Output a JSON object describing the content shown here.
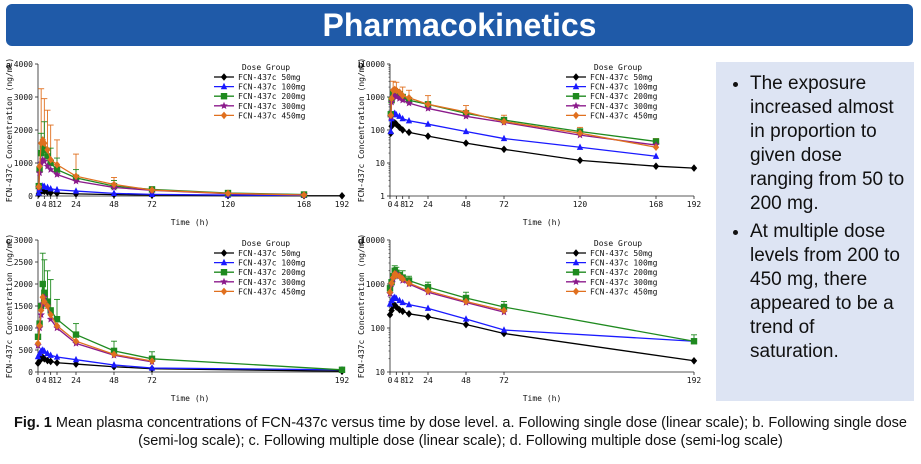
{
  "header": {
    "title": "Pharmacokinetics"
  },
  "bullets": [
    "The exposure increased almost in proportion to given dose ranging from 50 to 200 mg.",
    "At multiple dose levels from 200 to 450 mg, there appeared to be a trend of saturation."
  ],
  "caption": {
    "fig": "Fig. 1",
    "text": " Mean plasma concentrations of FCN-437c versus time by dose level. a. Following single dose (linear scale); b. Following single dose (semi-log scale); c. Following multiple dose (linear scale); d. Following multiple dose (semi-log scale)"
  },
  "colors": {
    "50mg": "#000000",
    "100mg": "#1a1aff",
    "200mg": "#1f8a1f",
    "300mg": "#8b1a8b",
    "450mg": "#e0701f",
    "banner": "#1f5aa8",
    "bullets_bg": "#dde4f3"
  },
  "chart_data": [
    {
      "id": "a",
      "type": "line",
      "scale": "linear",
      "xlabel": "Time (h)",
      "ylabel": "FCN-437c Concentration (ng/mL)",
      "xlim": [
        0,
        192
      ],
      "ylim": [
        0,
        4000
      ],
      "xticks": [
        0,
        4,
        8,
        12,
        24,
        48,
        72,
        120,
        168,
        192
      ],
      "xtick_labels": [
        "0",
        "4",
        "8",
        "12",
        "24",
        "48",
        "72",
        "120",
        "168",
        "192"
      ],
      "yticks": [
        0,
        1000,
        2000,
        3000,
        4000
      ],
      "ytick_labels": [
        "0",
        "1000",
        "2000",
        "3000",
        "4000"
      ],
      "legend_title": "Dose Group",
      "legend_position": "top-right",
      "series": [
        {
          "name": "FCN-437c 50mg",
          "marker": "diamond",
          "x": [
            0.5,
            1,
            2,
            3,
            4,
            6,
            8,
            12,
            24,
            48,
            72,
            120,
            168,
            192
          ],
          "values": [
            60,
            110,
            150,
            160,
            140,
            120,
            100,
            85,
            65,
            42,
            28,
            13,
            8,
            7
          ]
        },
        {
          "name": "FCN-437c 100mg",
          "marker": "triangle",
          "x": [
            0.5,
            1,
            2,
            3,
            4,
            6,
            8,
            12,
            24,
            48,
            72,
            120,
            168
          ],
          "values": [
            90,
            200,
            280,
            300,
            290,
            260,
            220,
            190,
            150,
            80,
            50,
            28,
            18
          ]
        },
        {
          "name": "FCN-437c 200mg",
          "marker": "square",
          "x": [
            0.5,
            1,
            2,
            3,
            4,
            6,
            8,
            12,
            24,
            48,
            72,
            120,
            168
          ],
          "values": [
            300,
            800,
            1300,
            1500,
            1400,
            1200,
            1000,
            800,
            550,
            300,
            200,
            90,
            45
          ]
        },
        {
          "name": "FCN-437c 300mg",
          "marker": "star",
          "x": [
            0.5,
            1,
            2,
            3,
            4,
            6,
            8,
            12,
            24,
            48,
            72,
            120,
            168
          ],
          "values": [
            250,
            700,
            1000,
            1100,
            1050,
            900,
            800,
            650,
            450,
            260,
            170,
            70,
            35
          ]
        },
        {
          "name": "FCN-437c 450mg",
          "marker": "diamond",
          "x": [
            0.5,
            1,
            2,
            3,
            4,
            6,
            8,
            12,
            24,
            48,
            72,
            120,
            168
          ],
          "values": [
            280,
            900,
            1600,
            1700,
            1600,
            1400,
            1100,
            950,
            600,
            350,
            180,
            80,
            30
          ]
        }
      ],
      "error_bars": [
        {
          "series": "FCN-437c 450mg",
          "x": [
            2,
            4,
            6,
            8,
            12,
            24,
            48,
            72
          ],
          "upper": [
            3250,
            2950,
            2600,
            2150,
            1700,
            1270,
            560,
            280
          ]
        },
        {
          "series": "FCN-437c 200mg",
          "x": [
            2,
            4,
            8,
            12,
            24,
            48,
            72
          ],
          "upper": [
            1900,
            2250,
            1450,
            1150,
            800,
            470,
            260
          ]
        }
      ]
    },
    {
      "id": "b",
      "type": "line",
      "scale": "log",
      "xlabel": "Time (h)",
      "ylabel": "FCN-437c Concentration (ng/mL)",
      "xlim": [
        0,
        192
      ],
      "ylim": [
        1,
        10000
      ],
      "xticks": [
        0,
        4,
        8,
        12,
        24,
        48,
        72,
        120,
        168,
        192
      ],
      "xtick_labels": [
        "0",
        "4",
        "8",
        "12",
        "24",
        "48",
        "72",
        "120",
        "168",
        "192"
      ],
      "yticks": [
        1,
        10,
        100,
        1000,
        10000
      ],
      "ytick_labels": [
        "1",
        "10",
        "100",
        "1000",
        "10000"
      ],
      "legend_title": "Dose Group",
      "legend_position": "top-right",
      "series": [
        {
          "name": "FCN-437c 50mg",
          "marker": "diamond",
          "x": [
            0.5,
            1,
            2,
            3,
            4,
            6,
            8,
            12,
            24,
            48,
            72,
            120,
            168,
            192
          ],
          "values": [
            80,
            130,
            160,
            165,
            150,
            120,
            100,
            85,
            65,
            40,
            26,
            12,
            8,
            7
          ]
        },
        {
          "name": "FCN-437c 100mg",
          "marker": "triangle",
          "x": [
            0.5,
            1,
            2,
            3,
            4,
            6,
            8,
            12,
            24,
            48,
            72,
            120,
            168
          ],
          "values": [
            90,
            220,
            300,
            320,
            290,
            260,
            220,
            190,
            150,
            90,
            55,
            30,
            16
          ]
        },
        {
          "name": "FCN-437c 200mg",
          "marker": "square",
          "x": [
            0.5,
            1,
            2,
            3,
            4,
            6,
            8,
            12,
            24,
            48,
            72,
            120,
            168
          ],
          "values": [
            300,
            800,
            1300,
            1500,
            1400,
            1200,
            1000,
            800,
            600,
            320,
            200,
            90,
            45
          ]
        },
        {
          "name": "FCN-437c 300mg",
          "marker": "star",
          "x": [
            0.5,
            1,
            2,
            3,
            4,
            6,
            8,
            12,
            24,
            48,
            72,
            120,
            168
          ],
          "values": [
            250,
            700,
            1000,
            1100,
            1000,
            900,
            800,
            650,
            450,
            260,
            170,
            70,
            35
          ]
        },
        {
          "name": "FCN-437c 450mg",
          "marker": "diamond",
          "x": [
            0.5,
            1,
            2,
            3,
            4,
            6,
            8,
            12,
            24,
            48,
            72,
            120,
            168
          ],
          "values": [
            280,
            900,
            1600,
            1700,
            1600,
            1400,
            1100,
            950,
            600,
            350,
            180,
            80,
            30
          ]
        }
      ],
      "error_bars": [
        {
          "series": "FCN-437c 450mg",
          "x": [
            2,
            4,
            8,
            12,
            24,
            48,
            72,
            120,
            168
          ],
          "upper": [
            3000,
            2800,
            2000,
            1600,
            1100,
            550,
            280,
            120,
            55
          ]
        }
      ]
    },
    {
      "id": "c",
      "type": "line",
      "scale": "linear",
      "xlabel": "Time (h)",
      "ylabel": "FCN-437c Concentration (ng/mL)",
      "xlim": [
        0,
        192
      ],
      "ylim": [
        0,
        3000
      ],
      "xticks": [
        0,
        4,
        8,
        12,
        24,
        48,
        72,
        192
      ],
      "xtick_labels": [
        "0",
        "4",
        "8",
        "12",
        "24",
        "48",
        "72",
        "192"
      ],
      "yticks": [
        0,
        500,
        1000,
        1500,
        2000,
        2500,
        3000
      ],
      "ytick_labels": [
        "0",
        "500",
        "1000",
        "1500",
        "2000",
        "2500",
        "3000"
      ],
      "legend_title": "Dose Group",
      "legend_position": "top-right",
      "series": [
        {
          "name": "FCN-437c 50mg",
          "marker": "diamond",
          "x": [
            0,
            1,
            2,
            3,
            4,
            6,
            8,
            12,
            24,
            48,
            72,
            192
          ],
          "values": [
            200,
            250,
            320,
            330,
            300,
            260,
            240,
            210,
            180,
            120,
            75,
            18
          ]
        },
        {
          "name": "FCN-437c 100mg",
          "marker": "triangle",
          "x": [
            0,
            1,
            2,
            3,
            4,
            6,
            8,
            12,
            24,
            48,
            72,
            192
          ],
          "values": [
            350,
            420,
            480,
            500,
            470,
            420,
            380,
            340,
            280,
            160,
            90,
            50
          ]
        },
        {
          "name": "FCN-437c 200mg",
          "marker": "square",
          "x": [
            0,
            1,
            2,
            3,
            4,
            6,
            8,
            12,
            24,
            48,
            72,
            192
          ],
          "values": [
            800,
            1100,
            1500,
            2000,
            1800,
            1600,
            1400,
            1200,
            850,
            480,
            300,
            50
          ]
        },
        {
          "name": "FCN-437c 300mg",
          "marker": "star",
          "x": [
            0,
            1,
            2,
            3,
            4,
            6,
            8,
            12,
            24,
            48,
            72
          ],
          "values": [
            600,
            1000,
            1300,
            1550,
            1700,
            1500,
            1200,
            1000,
            650,
            380,
            230
          ]
        },
        {
          "name": "FCN-437c 450mg",
          "marker": "diamond",
          "x": [
            0,
            1,
            2,
            3,
            4,
            6,
            8,
            12,
            24,
            48,
            72
          ],
          "values": [
            650,
            1050,
            1400,
            1700,
            1600,
            1500,
            1300,
            1050,
            700,
            400,
            250
          ]
        }
      ],
      "error_bars": [
        {
          "series": "FCN-437c 200mg",
          "x": [
            3,
            4,
            6,
            8,
            12,
            24,
            48,
            72
          ],
          "upper": [
            2700,
            2550,
            2300,
            2100,
            1650,
            1100,
            700,
            460
          ]
        }
      ]
    },
    {
      "id": "d",
      "type": "line",
      "scale": "log",
      "xlabel": "Time (h)",
      "ylabel": "FCN-437c Concentration (ng/mL)",
      "xlim": [
        0,
        192
      ],
      "ylim": [
        10,
        10000
      ],
      "xticks": [
        0,
        4,
        8,
        12,
        24,
        48,
        72,
        192
      ],
      "xtick_labels": [
        "0",
        "4",
        "8",
        "12",
        "24",
        "48",
        "72",
        "192"
      ],
      "yticks": [
        10,
        100,
        1000,
        10000
      ],
      "ytick_labels": [
        "10",
        "100",
        "1000",
        "10000"
      ],
      "legend_title": "Dose Group",
      "legend_position": "top-right",
      "series": [
        {
          "name": "FCN-437c 50mg",
          "marker": "diamond",
          "x": [
            0,
            1,
            2,
            3,
            4,
            6,
            8,
            12,
            24,
            48,
            72,
            192
          ],
          "values": [
            200,
            250,
            320,
            330,
            300,
            260,
            240,
            210,
            180,
            120,
            75,
            18
          ]
        },
        {
          "name": "FCN-437c 100mg",
          "marker": "triangle",
          "x": [
            0,
            1,
            2,
            3,
            4,
            6,
            8,
            12,
            24,
            48,
            72,
            192
          ],
          "values": [
            350,
            420,
            480,
            500,
            470,
            420,
            380,
            340,
            280,
            160,
            90,
            50
          ]
        },
        {
          "name": "FCN-437c 200mg",
          "marker": "square",
          "x": [
            0,
            1,
            2,
            3,
            4,
            6,
            8,
            12,
            24,
            48,
            72,
            192
          ],
          "values": [
            800,
            1100,
            1500,
            2000,
            1800,
            1600,
            1400,
            1200,
            850,
            480,
            300,
            50
          ]
        },
        {
          "name": "FCN-437c 300mg",
          "marker": "star",
          "x": [
            0,
            1,
            2,
            3,
            4,
            6,
            8,
            12,
            24,
            48,
            72
          ],
          "values": [
            600,
            1000,
            1300,
            1550,
            1700,
            1500,
            1200,
            1000,
            650,
            380,
            230
          ]
        },
        {
          "name": "FCN-437c 450mg",
          "marker": "diamond",
          "x": [
            0,
            1,
            2,
            3,
            4,
            6,
            8,
            12,
            24,
            48,
            72
          ],
          "values": [
            650,
            1050,
            1400,
            1700,
            1600,
            1500,
            1300,
            1050,
            700,
            400,
            250
          ]
        }
      ],
      "error_bars": [
        {
          "series": "FCN-437c 200mg",
          "x": [
            3,
            4,
            8,
            12,
            24,
            48,
            72,
            192
          ],
          "upper": [
            2600,
            2400,
            2000,
            1500,
            1100,
            650,
            400,
            70
          ]
        }
      ]
    }
  ]
}
